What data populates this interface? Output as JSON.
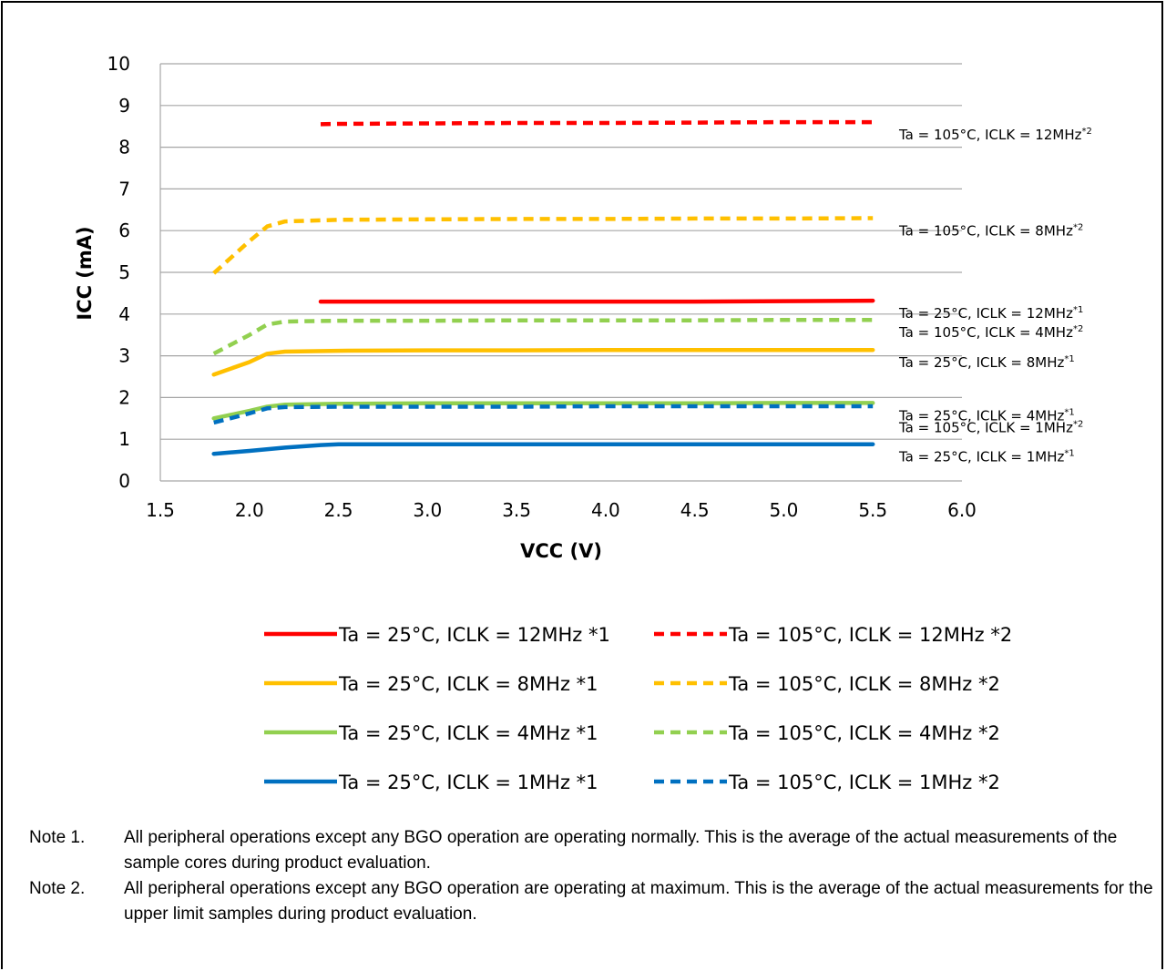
{
  "chart_data": {
    "type": "line",
    "title": "",
    "xlabel": "VCC (V)",
    "ylabel": "ICC (mA)",
    "xlim": [
      1.5,
      6.0
    ],
    "ylim": [
      0,
      10
    ],
    "x_ticks": [
      "1.5",
      "2.0",
      "2.5",
      "3.0",
      "3.5",
      "4.0",
      "4.5",
      "5.0",
      "5.5",
      "6.0"
    ],
    "y_ticks": [
      "0",
      "1",
      "2",
      "3",
      "4",
      "5",
      "6",
      "7",
      "8",
      "9",
      "10"
    ],
    "grid": "horizontal",
    "legend_position": "bottom",
    "colors": {
      "12MHz": "#ff0000",
      "8MHz": "#ffc000",
      "4MHz": "#92d050",
      "1MHz": "#0070c0"
    },
    "series": [
      {
        "name": "Ta = 25°C, ICLK = 12MHz *1",
        "annotation": "Ta = 25°C, ICLK = 12MHz",
        "annotation_sup": "*1",
        "color": "#ff0000",
        "dash": false,
        "x": [
          2.4,
          2.5,
          3.0,
          3.5,
          4.0,
          4.5,
          5.0,
          5.5
        ],
        "y": [
          4.3,
          4.3,
          4.3,
          4.3,
          4.3,
          4.3,
          4.31,
          4.32
        ]
      },
      {
        "name": "Ta = 105°C, ICLK = 12MHz *2",
        "annotation": "Ta = 105°C, ICLK = 12MHz",
        "annotation_sup": "*2",
        "color": "#ff0000",
        "dash": true,
        "x": [
          2.4,
          2.5,
          3.0,
          3.5,
          4.0,
          4.5,
          5.0,
          5.5
        ],
        "y": [
          8.55,
          8.56,
          8.57,
          8.58,
          8.58,
          8.59,
          8.6,
          8.6
        ]
      },
      {
        "name": "Ta = 25°C, ICLK = 8MHz *1",
        "annotation": "Ta = 25°C, ICLK = 8MHz",
        "annotation_sup": "*1",
        "color": "#ffc000",
        "dash": false,
        "x": [
          1.8,
          2.0,
          2.1,
          2.2,
          2.5,
          3.0,
          3.5,
          4.0,
          4.5,
          5.0,
          5.5
        ],
        "y": [
          2.55,
          2.85,
          3.05,
          3.1,
          3.12,
          3.13,
          3.13,
          3.14,
          3.14,
          3.14,
          3.14
        ]
      },
      {
        "name": "Ta = 105°C, ICLK = 8MHz *2",
        "annotation": "Ta = 105°C, ICLK = 8MHz",
        "annotation_sup": "*2",
        "color": "#ffc000",
        "dash": true,
        "x": [
          1.8,
          2.0,
          2.1,
          2.2,
          2.5,
          3.0,
          3.5,
          4.0,
          4.5,
          5.0,
          5.5
        ],
        "y": [
          4.98,
          5.75,
          6.1,
          6.22,
          6.26,
          6.27,
          6.28,
          6.28,
          6.29,
          6.29,
          6.3
        ]
      },
      {
        "name": "Ta = 25°C, ICLK = 4MHz *1",
        "annotation": "Ta = 25°C, ICLK = 4MHz",
        "annotation_sup": "*1",
        "color": "#92d050",
        "dash": false,
        "x": [
          1.8,
          2.0,
          2.1,
          2.2,
          2.5,
          3.0,
          3.5,
          4.0,
          4.5,
          5.0,
          5.5
        ],
        "y": [
          1.5,
          1.68,
          1.78,
          1.83,
          1.85,
          1.86,
          1.86,
          1.86,
          1.86,
          1.87,
          1.87
        ]
      },
      {
        "name": "Ta = 105°C, ICLK = 4MHz *2",
        "annotation": "Ta = 105°C, ICLK = 4MHz",
        "annotation_sup": "*2",
        "color": "#92d050",
        "dash": true,
        "x": [
          1.8,
          2.0,
          2.1,
          2.2,
          2.5,
          3.0,
          3.5,
          4.0,
          4.5,
          5.0,
          5.5
        ],
        "y": [
          3.05,
          3.5,
          3.75,
          3.82,
          3.84,
          3.84,
          3.85,
          3.85,
          3.85,
          3.86,
          3.86
        ]
      },
      {
        "name": "Ta = 25°C, ICLK = 1MHz *1",
        "annotation": "Ta = 25°C, ICLK = 1MHz",
        "annotation_sup": "*1",
        "color": "#0070c0",
        "dash": false,
        "x": [
          1.8,
          2.0,
          2.2,
          2.4,
          2.5,
          3.0,
          3.5,
          4.0,
          4.5,
          5.0,
          5.5
        ],
        "y": [
          0.65,
          0.72,
          0.8,
          0.86,
          0.88,
          0.88,
          0.88,
          0.88,
          0.88,
          0.88,
          0.88
        ]
      },
      {
        "name": "Ta = 105°C, ICLK = 1MHz *2",
        "annotation": "Ta = 105°C, ICLK = 1MHz",
        "annotation_sup": "*2",
        "color": "#0070c0",
        "dash": true,
        "x": [
          1.8,
          2.0,
          2.1,
          2.2,
          2.5,
          3.0,
          3.5,
          4.0,
          4.5,
          5.0,
          5.5
        ],
        "y": [
          1.4,
          1.62,
          1.74,
          1.77,
          1.78,
          1.78,
          1.78,
          1.79,
          1.79,
          1.79,
          1.79
        ]
      }
    ]
  },
  "notes": [
    {
      "label": "Note 1.",
      "text": "All peripheral operations except any BGO operation are operating normally. This is the average of the actual measurements of the sample cores during product evaluation."
    },
    {
      "label": "Note 2.",
      "text": "All peripheral operations except any BGO operation are operating at maximum. This is the average of the actual measurements for the upper limit samples during product evaluation."
    }
  ]
}
